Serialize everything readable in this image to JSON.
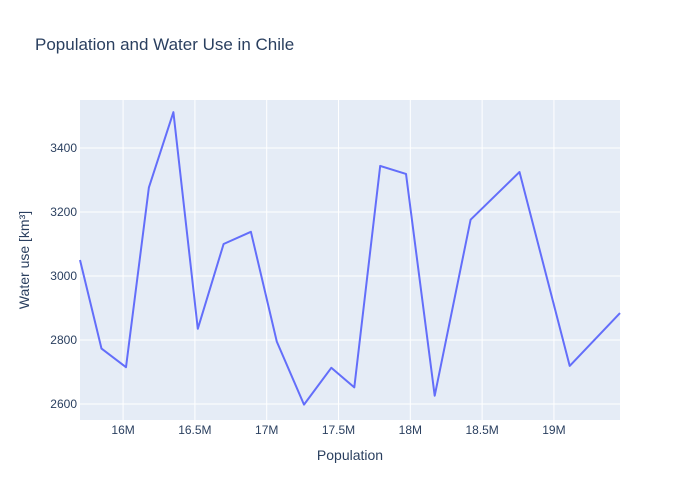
{
  "chart_data": {
    "type": "line",
    "title": "Population and Water Use in Chile",
    "xlabel": "Population",
    "ylabel": "Water use [km³]",
    "xlim": [
      15700000,
      19460000
    ],
    "ylim": [
      2550,
      3550
    ],
    "x_ticks": [
      {
        "value": 16000000,
        "label": "16M"
      },
      {
        "value": 16500000,
        "label": "16.5M"
      },
      {
        "value": 17000000,
        "label": "17M"
      },
      {
        "value": 17500000,
        "label": "17.5M"
      },
      {
        "value": 18000000,
        "label": "18M"
      },
      {
        "value": 18500000,
        "label": "18.5M"
      },
      {
        "value": 19000000,
        "label": "19M"
      }
    ],
    "y_ticks": [
      {
        "value": 2600,
        "label": "2600"
      },
      {
        "value": 2800,
        "label": "2800"
      },
      {
        "value": 3000,
        "label": "3000"
      },
      {
        "value": 3200,
        "label": "3200"
      },
      {
        "value": 3400,
        "label": "3400"
      }
    ],
    "grid": true,
    "colors": {
      "line": "#636efa",
      "plot_bg": "#e5ecf6",
      "grid": "#ffffff",
      "text": "#2a3f5f"
    },
    "series": [
      {
        "x": [
          15700000,
          15850000,
          16020000,
          16180000,
          16350000,
          16520000,
          16700000,
          16890000,
          17070000,
          17260000,
          17450000,
          17610000,
          17790000,
          17970000,
          18170000,
          18420000,
          18760000,
          19110000,
          19460000
        ],
        "y": [
          3050,
          2773,
          2715,
          3277,
          3512,
          2835,
          3100,
          3138,
          2795,
          2598,
          2713,
          2652,
          3344,
          3319,
          2626,
          3176,
          3325,
          2719,
          2884
        ]
      }
    ]
  }
}
